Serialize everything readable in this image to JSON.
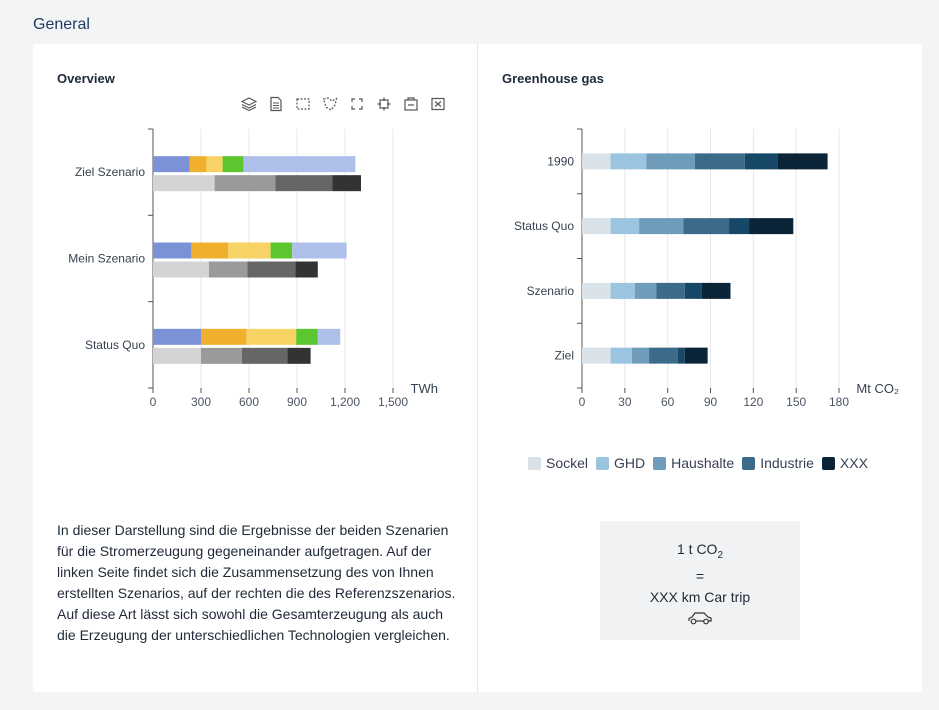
{
  "section_title": "General",
  "overview": {
    "title": "Overview",
    "toolbar_icons": [
      "layers-icon",
      "document-icon",
      "select-rect-icon",
      "lasso-icon",
      "zoom-in-icon",
      "zoom-out-icon",
      "restore-icon",
      "clear-icon"
    ]
  },
  "greenhouse": {
    "title": "Greenhouse gas"
  },
  "description": "In dieser Darstellung sind die Ergebnisse der beiden Szenarien für die Stromerzeugung gegeneinander aufgetragen. Auf der linken Seite findet sich die Zusammensetzung des von Ihnen erstellten Szenarios, auf der rechten die des Referenzszenarios. Auf diese Art lässt sich sowohl die Gesamterzeugung als auch die Erzeugung der unterschiedlichen Technologien vergleichen.",
  "co2_box": {
    "line1": "1 t CO",
    "line1_sub": "2",
    "line2": "=",
    "line3": "XXX km Car trip",
    "icon": "car-icon"
  },
  "chart_data": [
    {
      "type": "bar",
      "orientation": "horizontal",
      "stacked": true,
      "categories": [
        "Ziel Szenario",
        "Mein Szenario",
        "Status Quo"
      ],
      "xunit": "TWh",
      "xlim": [
        0,
        1500
      ],
      "xticks": [
        "0",
        "300",
        "600",
        "900",
        "1,200",
        "1,500"
      ],
      "grid": true,
      "colored_series": {
        "colors": [
          "#7b93d6",
          "#f0b02e",
          "#f7d366",
          "#5cc62f",
          "#aec0ea"
        ],
        "values": [
          [
            230,
            105,
            100,
            130,
            700
          ],
          [
            240,
            230,
            265,
            135,
            340
          ],
          [
            300,
            285,
            310,
            135,
            140
          ]
        ]
      },
      "gray_series": {
        "colors": [
          "#d4d4d4",
          "#9a9a9a",
          "#666666",
          "#333333"
        ],
        "values": [
          [
            385,
            380,
            355,
            180
          ],
          [
            350,
            240,
            300,
            140
          ],
          [
            300,
            255,
            285,
            145
          ]
        ]
      }
    },
    {
      "type": "bar",
      "orientation": "horizontal",
      "stacked": true,
      "categories": [
        "1990",
        "Status Quo",
        "Szenario",
        "Ziel"
      ],
      "xunit": "Mt CO₂",
      "xlim": [
        0,
        180
      ],
      "xticks": [
        "0",
        "30",
        "60",
        "90",
        "120",
        "150",
        "180"
      ],
      "grid": true,
      "series": [
        {
          "name": "Sockel",
          "color": "#d9e2e8",
          "values": [
            20,
            20,
            20,
            20
          ]
        },
        {
          "name": "GHD",
          "color": "#9ac4df",
          "values": [
            25,
            20,
            17,
            15
          ]
        },
        {
          "name": "Haushalte",
          "color": "#6f9cba",
          "values": [
            34,
            31,
            15,
            12
          ]
        },
        {
          "name": "Industrie",
          "color": "#3c6a8a",
          "values": [
            35,
            32,
            20,
            20
          ]
        },
        {
          "name": "",
          "color": "#174868",
          "values": [
            23,
            14,
            12,
            5
          ]
        },
        {
          "name": "XXX",
          "color": "#0c2438",
          "values": [
            35,
            31,
            20,
            16
          ]
        }
      ],
      "legend_position": "bottom"
    }
  ]
}
